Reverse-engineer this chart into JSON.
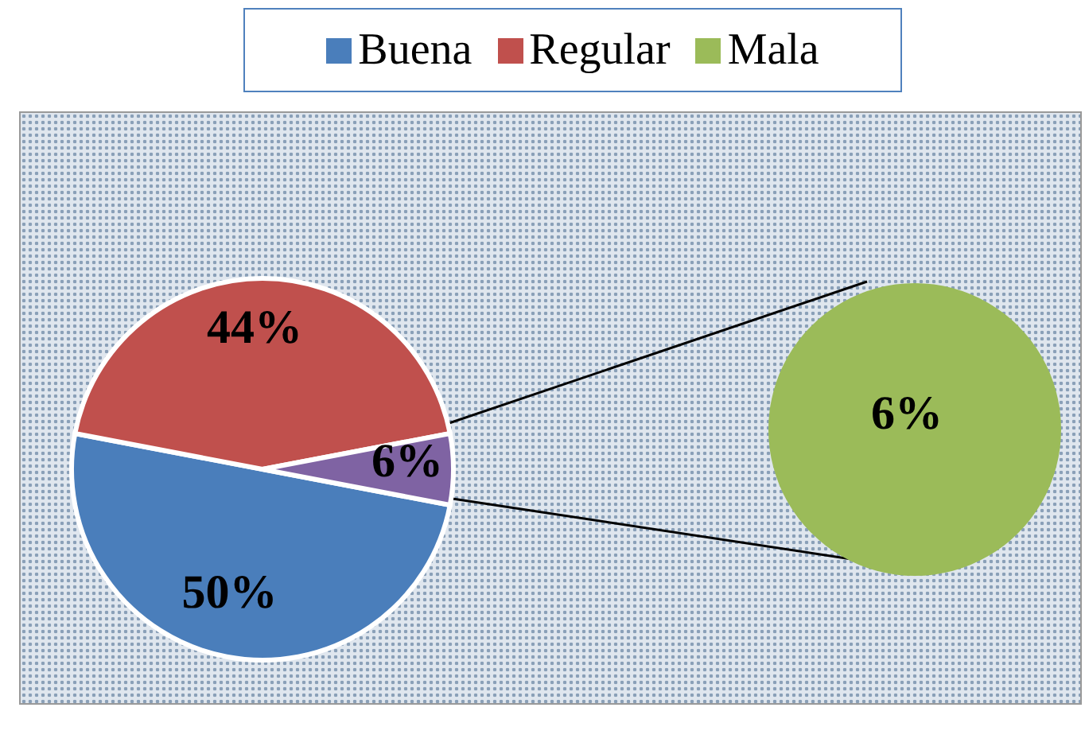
{
  "chart_data": {
    "type": "pie",
    "categories": [
      "Buena",
      "Regular",
      "Mala"
    ],
    "series": [
      {
        "values": [
          50,
          44,
          6
        ],
        "colors": [
          "#4a7ebb",
          "#c0504d",
          "#7f63a3"
        ],
        "value_labels": [
          "50%",
          "44%",
          "6%"
        ]
      },
      {
        "values": [
          null,
          null,
          6
        ],
        "colors": [
          null,
          null,
          "#9bbb59"
        ],
        "value_labels": [
          null,
          null,
          "6%"
        ]
      }
    ],
    "legend": "top"
  }
}
